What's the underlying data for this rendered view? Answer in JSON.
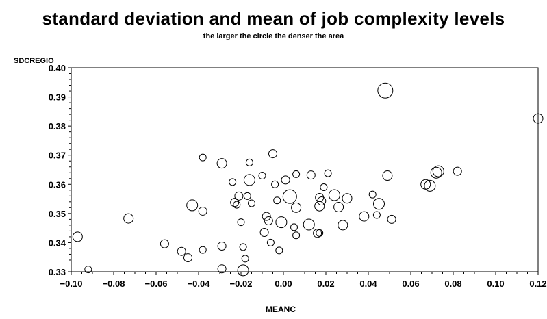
{
  "chart_data": {
    "type": "scatter",
    "title": "standard deviation and mean of job complexity levels",
    "subtitle": "the larger the circle the denser the area",
    "xlabel": "MEANC",
    "ylabel": "SDCREGIO",
    "xlim": [
      -0.1,
      0.12
    ],
    "ylim": [
      0.33,
      0.4
    ],
    "x_ticks": [
      -0.1,
      -0.08,
      -0.06,
      -0.04,
      -0.02,
      0.0,
      0.02,
      0.04,
      0.06,
      0.08,
      0.1,
      0.12
    ],
    "x_tick_labels": [
      "−0.10",
      "−0.08",
      "−0.06",
      "−0.04",
      "−0.02",
      "0.00",
      "0.02",
      "0.04",
      "0.06",
      "0.08",
      "0.10",
      "0.12"
    ],
    "y_ticks": [
      0.33,
      0.34,
      0.35,
      0.36,
      0.37,
      0.38,
      0.39,
      0.4
    ],
    "y_tick_labels": [
      "0.33",
      "0.34",
      "0.35",
      "0.36",
      "0.37",
      "0.38",
      "0.39",
      "0.40"
    ],
    "marker": "open-circle",
    "size_encodes": "density",
    "points": [
      {
        "x": -0.097,
        "y": 0.342,
        "size": 7
      },
      {
        "x": -0.092,
        "y": 0.3308,
        "size": 5
      },
      {
        "x": -0.073,
        "y": 0.3483,
        "size": 7
      },
      {
        "x": -0.056,
        "y": 0.3396,
        "size": 6
      },
      {
        "x": -0.048,
        "y": 0.337,
        "size": 6
      },
      {
        "x": -0.045,
        "y": 0.3348,
        "size": 6
      },
      {
        "x": -0.043,
        "y": 0.3528,
        "size": 8
      },
      {
        "x": -0.038,
        "y": 0.3692,
        "size": 5
      },
      {
        "x": -0.038,
        "y": 0.3508,
        "size": 6
      },
      {
        "x": -0.038,
        "y": 0.3375,
        "size": 5
      },
      {
        "x": -0.029,
        "y": 0.3672,
        "size": 7
      },
      {
        "x": -0.029,
        "y": 0.3388,
        "size": 6
      },
      {
        "x": -0.029,
        "y": 0.331,
        "size": 6
      },
      {
        "x": -0.024,
        "y": 0.3608,
        "size": 5
      },
      {
        "x": -0.023,
        "y": 0.3538,
        "size": 6
      },
      {
        "x": -0.022,
        "y": 0.353,
        "size": 5
      },
      {
        "x": -0.021,
        "y": 0.356,
        "size": 6
      },
      {
        "x": -0.02,
        "y": 0.347,
        "size": 5
      },
      {
        "x": -0.019,
        "y": 0.3385,
        "size": 5
      },
      {
        "x": -0.019,
        "y": 0.3305,
        "size": 8
      },
      {
        "x": -0.018,
        "y": 0.3345,
        "size": 5
      },
      {
        "x": -0.017,
        "y": 0.356,
        "size": 5
      },
      {
        "x": -0.016,
        "y": 0.3615,
        "size": 8
      },
      {
        "x": -0.016,
        "y": 0.3675,
        "size": 5
      },
      {
        "x": -0.015,
        "y": 0.3535,
        "size": 5
      },
      {
        "x": -0.01,
        "y": 0.363,
        "size": 5
      },
      {
        "x": -0.009,
        "y": 0.3435,
        "size": 6
      },
      {
        "x": -0.008,
        "y": 0.349,
        "size": 6
      },
      {
        "x": -0.007,
        "y": 0.3475,
        "size": 6
      },
      {
        "x": -0.006,
        "y": 0.34,
        "size": 5
      },
      {
        "x": -0.005,
        "y": 0.3705,
        "size": 6
      },
      {
        "x": -0.004,
        "y": 0.36,
        "size": 5
      },
      {
        "x": -0.003,
        "y": 0.3545,
        "size": 5
      },
      {
        "x": -0.002,
        "y": 0.3373,
        "size": 5
      },
      {
        "x": -0.001,
        "y": 0.347,
        "size": 8
      },
      {
        "x": 0.001,
        "y": 0.3615,
        "size": 6
      },
      {
        "x": 0.003,
        "y": 0.3558,
        "size": 10
      },
      {
        "x": 0.005,
        "y": 0.3453,
        "size": 5
      },
      {
        "x": 0.006,
        "y": 0.352,
        "size": 7
      },
      {
        "x": 0.006,
        "y": 0.3635,
        "size": 5
      },
      {
        "x": 0.006,
        "y": 0.3425,
        "size": 5
      },
      {
        "x": 0.012,
        "y": 0.3462,
        "size": 8
      },
      {
        "x": 0.013,
        "y": 0.3632,
        "size": 6
      },
      {
        "x": 0.016,
        "y": 0.3432,
        "size": 6
      },
      {
        "x": 0.017,
        "y": 0.3433,
        "size": 5
      },
      {
        "x": 0.017,
        "y": 0.3525,
        "size": 7
      },
      {
        "x": 0.017,
        "y": 0.3555,
        "size": 6
      },
      {
        "x": 0.018,
        "y": 0.3543,
        "size": 6
      },
      {
        "x": 0.019,
        "y": 0.359,
        "size": 5
      },
      {
        "x": 0.021,
        "y": 0.3638,
        "size": 5
      },
      {
        "x": 0.024,
        "y": 0.3563,
        "size": 8
      },
      {
        "x": 0.026,
        "y": 0.3522,
        "size": 7
      },
      {
        "x": 0.028,
        "y": 0.346,
        "size": 7
      },
      {
        "x": 0.03,
        "y": 0.3552,
        "size": 7
      },
      {
        "x": 0.038,
        "y": 0.349,
        "size": 7
      },
      {
        "x": 0.042,
        "y": 0.3565,
        "size": 5
      },
      {
        "x": 0.044,
        "y": 0.3495,
        "size": 5
      },
      {
        "x": 0.045,
        "y": 0.3533,
        "size": 8
      },
      {
        "x": 0.048,
        "y": 0.3922,
        "size": 11
      },
      {
        "x": 0.049,
        "y": 0.363,
        "size": 7
      },
      {
        "x": 0.051,
        "y": 0.348,
        "size": 6
      },
      {
        "x": 0.067,
        "y": 0.36,
        "size": 7
      },
      {
        "x": 0.069,
        "y": 0.3595,
        "size": 8
      },
      {
        "x": 0.072,
        "y": 0.364,
        "size": 8
      },
      {
        "x": 0.073,
        "y": 0.3645,
        "size": 8
      },
      {
        "x": 0.082,
        "y": 0.3645,
        "size": 6
      },
      {
        "x": 0.12,
        "y": 0.3826,
        "size": 7
      }
    ]
  }
}
